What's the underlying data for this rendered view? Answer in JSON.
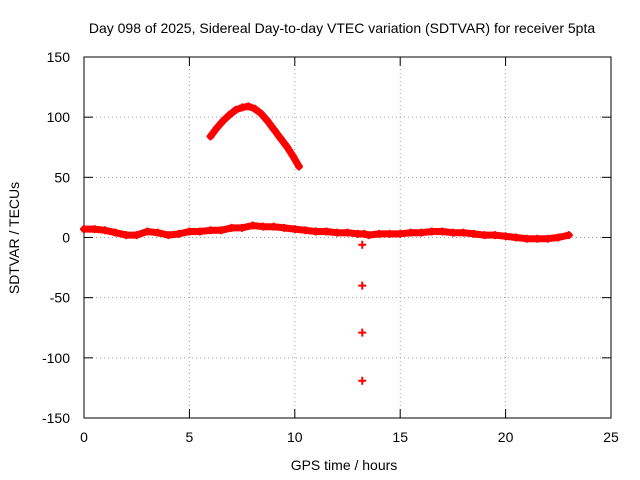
{
  "chart_data": {
    "type": "scatter",
    "title": "Day 098 of 2025, Sidereal Day-to-day VTEC variation (SDTVAR) for receiver 5pta",
    "xlabel": "GPS time / hours",
    "ylabel": "SDTVAR / TECUs",
    "xlim": [
      0,
      25
    ],
    "ylim": [
      -150,
      150
    ],
    "xticks": [
      0,
      5,
      10,
      15,
      20,
      25
    ],
    "yticks": [
      -150,
      -100,
      -50,
      0,
      50,
      100,
      150
    ],
    "grid": true,
    "marker": "+",
    "color": "#ff0000",
    "series": [
      {
        "name": "main trace",
        "x": [
          0,
          0.5,
          1,
          1.5,
          2,
          2.5,
          3,
          3.5,
          4,
          4.5,
          5,
          5.5,
          6,
          6.5,
          7,
          7.5,
          8,
          8.5,
          9,
          9.5,
          10,
          10.5,
          11,
          11.5,
          12,
          12.5,
          13,
          13.3,
          13.5,
          14,
          14.5,
          15,
          15.5,
          16,
          16.5,
          17,
          17.5,
          18,
          18.5,
          19,
          19.5,
          20,
          20.5,
          21,
          21.5,
          22,
          22.5,
          23
        ],
        "y": [
          7,
          7,
          6,
          4,
          2,
          2,
          5,
          4,
          2,
          3,
          5,
          5,
          6,
          6,
          8,
          8,
          10,
          9,
          9,
          8,
          7,
          6,
          5,
          5,
          4,
          4,
          3,
          3,
          2,
          3,
          3,
          3,
          4,
          4,
          5,
          5,
          4,
          4,
          3,
          2,
          2,
          1,
          0,
          -1,
          -1,
          -1,
          0,
          2
        ]
      },
      {
        "name": "arc",
        "x": [
          6,
          6.3,
          6.6,
          6.9,
          7.2,
          7.5,
          7.8,
          8.1,
          8.4,
          8.7,
          9.0,
          9.3,
          9.6,
          9.9,
          10.2
        ],
        "y": [
          84,
          91,
          97,
          102,
          106,
          108,
          109,
          107,
          103,
          97,
          90,
          83,
          76,
          68,
          59
        ]
      },
      {
        "name": "outliers",
        "x": [
          13.2,
          13.2,
          13.2,
          13.2
        ],
        "y": [
          -6,
          -40,
          -79,
          -119
        ]
      }
    ]
  }
}
